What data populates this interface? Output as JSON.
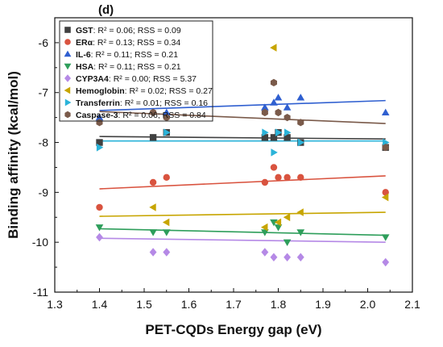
{
  "chart_data": {
    "type": "scatter",
    "panel_label": "(d)",
    "xlabel": "PET-CQDs Energy gap (eV)",
    "ylabel": "Binding affinity (kcal/mol)",
    "xlim": [
      1.3,
      2.1
    ],
    "ylim": [
      -11,
      -5.5
    ],
    "x_ticks": [
      1.3,
      1.4,
      1.5,
      1.6,
      1.7,
      1.8,
      1.9,
      2.0,
      2.1
    ],
    "x_tick_labels": [
      "1.3",
      "1.4",
      "1.5",
      "1.6",
      "1.7",
      "1.8",
      "1.9",
      "2.0",
      "2.1"
    ],
    "y_ticks": [
      -11,
      -10,
      -9,
      -8,
      -7,
      -6
    ],
    "y_tick_labels": [
      "-11",
      "-10",
      "-9",
      "-8",
      "-7",
      "-6"
    ],
    "grid": false,
    "legend_position": "top-left",
    "series": [
      {
        "name": "GST",
        "stats": "R² = 0.06; RSS = 0.09",
        "color": "#404040",
        "marker": "square",
        "points": [
          [
            1.4,
            -8.0
          ],
          [
            1.52,
            -7.9
          ],
          [
            1.55,
            -7.8
          ],
          [
            1.77,
            -7.9
          ],
          [
            1.79,
            -7.9
          ],
          [
            1.8,
            -7.8
          ],
          [
            1.82,
            -7.9
          ],
          [
            1.85,
            -8.0
          ],
          [
            2.04,
            -8.1
          ]
        ],
        "fit": [
          [
            1.4,
            -7.88
          ],
          [
            2.04,
            -7.93
          ]
        ]
      },
      {
        "name": "ERα",
        "stats": "R² = 0.13; RSS = 0.34",
        "color": "#d9533f",
        "marker": "circle",
        "points": [
          [
            1.4,
            -9.3
          ],
          [
            1.52,
            -8.8
          ],
          [
            1.55,
            -8.7
          ],
          [
            1.77,
            -8.8
          ],
          [
            1.79,
            -8.5
          ],
          [
            1.8,
            -8.7
          ],
          [
            1.82,
            -8.7
          ],
          [
            1.85,
            -8.7
          ],
          [
            2.04,
            -9.0
          ]
        ],
        "fit": [
          [
            1.4,
            -8.93
          ],
          [
            2.04,
            -8.67
          ]
        ]
      },
      {
        "name": "IL-6",
        "stats": "R² = 0.11; RSS = 0.21",
        "color": "#2f5fd0",
        "marker": "triangle-up",
        "points": [
          [
            1.4,
            -7.5
          ],
          [
            1.55,
            -7.4
          ],
          [
            1.77,
            -7.3
          ],
          [
            1.79,
            -7.2
          ],
          [
            1.8,
            -7.1
          ],
          [
            1.82,
            -7.3
          ],
          [
            1.85,
            -7.1
          ],
          [
            2.04,
            -7.4
          ]
        ],
        "fit": [
          [
            1.4,
            -7.36
          ],
          [
            2.04,
            -7.16
          ]
        ]
      },
      {
        "name": "HSA",
        "stats": "R² = 0.11; RSS = 0.21",
        "color": "#2e9e5b",
        "marker": "triangle-down",
        "points": [
          [
            1.4,
            -9.7
          ],
          [
            1.52,
            -9.8
          ],
          [
            1.55,
            -9.8
          ],
          [
            1.77,
            -9.8
          ],
          [
            1.79,
            -9.6
          ],
          [
            1.8,
            -9.7
          ],
          [
            1.82,
            -10.0
          ],
          [
            1.85,
            -9.8
          ],
          [
            2.04,
            -9.9
          ]
        ],
        "fit": [
          [
            1.4,
            -9.73
          ],
          [
            2.04,
            -9.86
          ]
        ]
      },
      {
        "name": "CYP3A4",
        "stats": "R² = 0.00; RSS = 5.37",
        "color": "#b589e6",
        "marker": "diamond",
        "points": [
          [
            1.4,
            -9.9
          ],
          [
            1.52,
            -10.2
          ],
          [
            1.55,
            -10.2
          ],
          [
            1.77,
            -10.2
          ],
          [
            1.79,
            -10.3
          ],
          [
            1.82,
            -10.3
          ],
          [
            1.85,
            -10.3
          ],
          [
            2.04,
            -10.4
          ]
        ],
        "fit": [
          [
            1.4,
            -9.92
          ],
          [
            2.04,
            -10.0
          ]
        ]
      },
      {
        "name": "Hemoglobin",
        "stats": "R² = 0.02; RSS = 0.27",
        "color": "#c7a500",
        "marker": "triangle-left",
        "points": [
          [
            1.52,
            -9.3
          ],
          [
            1.55,
            -9.6
          ],
          [
            1.77,
            -9.7
          ],
          [
            1.79,
            -6.1
          ],
          [
            1.8,
            -9.6
          ],
          [
            1.82,
            -9.5
          ],
          [
            1.85,
            -9.4
          ],
          [
            2.04,
            -9.1
          ]
        ],
        "fit": [
          [
            1.4,
            -9.48
          ],
          [
            2.04,
            -9.4
          ]
        ]
      },
      {
        "name": "Transferrin",
        "stats": "R² = 0.01; RSS = 0.16",
        "color": "#2bb3d9",
        "marker": "triangle-right",
        "points": [
          [
            1.4,
            -8.1
          ],
          [
            1.55,
            -7.8
          ],
          [
            1.77,
            -7.8
          ],
          [
            1.79,
            -8.2
          ],
          [
            1.8,
            -7.8
          ],
          [
            1.82,
            -7.8
          ],
          [
            1.85,
            -8.0
          ],
          [
            2.04,
            -8.0
          ]
        ],
        "fit": [
          [
            1.4,
            -7.97
          ],
          [
            2.04,
            -7.97
          ]
        ]
      },
      {
        "name": "Caspase-3",
        "stats": "R² = 0.06; RSS = 0.84",
        "color": "#7a5a4a",
        "marker": "hexagon",
        "points": [
          [
            1.4,
            -7.6
          ],
          [
            1.52,
            -7.4
          ],
          [
            1.55,
            -7.5
          ],
          [
            1.77,
            -7.4
          ],
          [
            1.79,
            -6.8
          ],
          [
            1.8,
            -7.4
          ],
          [
            1.82,
            -7.5
          ],
          [
            1.85,
            -7.6
          ],
          [
            2.04,
            -8.1
          ]
        ],
        "fit": [
          [
            1.4,
            -7.38
          ],
          [
            2.04,
            -7.62
          ]
        ]
      }
    ]
  }
}
